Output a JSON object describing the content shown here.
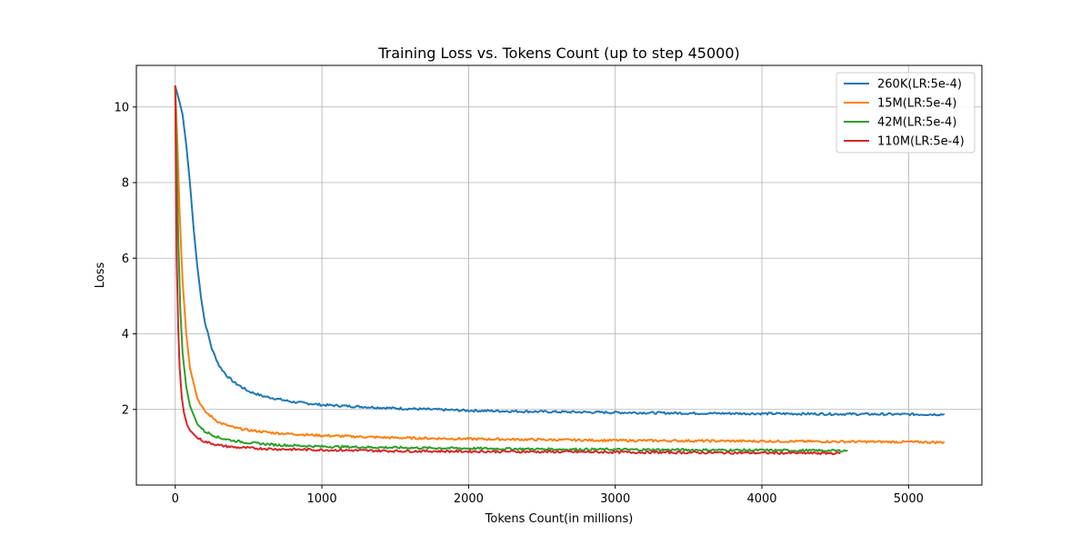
{
  "chart_data": {
    "type": "line",
    "title": "Training Loss vs. Tokens Count (up to step 45000)",
    "xlabel": "Tokens Count(in millions)",
    "ylabel": "Loss",
    "xlim": [
      -265,
      5500
    ],
    "ylim": [
      0.0,
      11.1
    ],
    "xticks": [
      0,
      1000,
      2000,
      3000,
      4000,
      5000
    ],
    "yticks": [
      2,
      4,
      6,
      8,
      10
    ],
    "grid": true,
    "legend_position": "top-right",
    "series": [
      {
        "name": "260K(LR:5e-4)",
        "color": "#1f77b4",
        "x": [
          0,
          25,
          50,
          75,
          100,
          125,
          150,
          175,
          200,
          250,
          300,
          350,
          400,
          500,
          600,
          800,
          1000,
          1500,
          2000,
          2500,
          3000,
          3500,
          4000,
          4500,
          5000,
          5240
        ],
        "y": [
          10.55,
          10.2,
          9.8,
          9.0,
          8.0,
          6.8,
          5.8,
          5.0,
          4.35,
          3.6,
          3.15,
          2.9,
          2.72,
          2.48,
          2.35,
          2.2,
          2.12,
          2.03,
          1.97,
          1.94,
          1.92,
          1.9,
          1.89,
          1.88,
          1.87,
          1.87
        ]
      },
      {
        "name": "15M(LR:5e-4)",
        "color": "#ff7f0e",
        "x": [
          0,
          15,
          30,
          50,
          75,
          100,
          150,
          200,
          300,
          400,
          500,
          700,
          1000,
          1500,
          2000,
          2500,
          3000,
          3500,
          4000,
          4500,
          5000,
          5240
        ],
        "y": [
          10.55,
          9.0,
          7.2,
          5.4,
          4.0,
          3.1,
          2.3,
          1.95,
          1.65,
          1.52,
          1.45,
          1.37,
          1.31,
          1.25,
          1.22,
          1.2,
          1.18,
          1.17,
          1.16,
          1.15,
          1.14,
          1.13
        ]
      },
      {
        "name": "42M(LR:5e-4)",
        "color": "#2ca02c",
        "x": [
          0,
          10,
          20,
          35,
          50,
          75,
          100,
          150,
          200,
          300,
          400,
          500,
          700,
          1000,
          1500,
          2000,
          2500,
          3000,
          3500,
          4000,
          4500,
          4580
        ],
        "y": [
          10.55,
          8.6,
          6.6,
          4.6,
          3.5,
          2.6,
          2.1,
          1.62,
          1.42,
          1.25,
          1.17,
          1.12,
          1.06,
          1.02,
          0.99,
          0.97,
          0.95,
          0.94,
          0.93,
          0.92,
          0.91,
          0.91
        ]
      },
      {
        "name": "110M(LR:5e-4)",
        "color": "#d62728",
        "x": [
          0,
          5,
          10,
          20,
          30,
          45,
          60,
          80,
          100,
          150,
          200,
          300,
          400,
          500,
          700,
          1000,
          1500,
          2000,
          2500,
          3000,
          3500,
          4000,
          4530
        ],
        "y": [
          10.55,
          8.0,
          6.0,
          4.2,
          3.1,
          2.3,
          1.9,
          1.6,
          1.45,
          1.25,
          1.15,
          1.05,
          1.0,
          0.98,
          0.95,
          0.93,
          0.9,
          0.89,
          0.88,
          0.87,
          0.86,
          0.85,
          0.84
        ]
      }
    ]
  }
}
